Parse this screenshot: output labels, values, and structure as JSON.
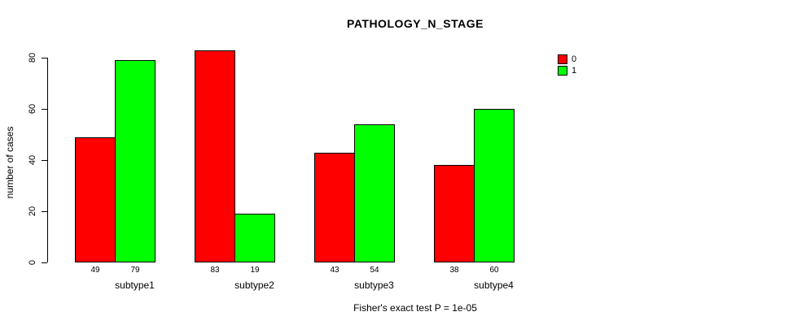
{
  "chart_data": {
    "type": "bar",
    "title": "PATHOLOGY_N_STAGE",
    "ylabel": "number of cases",
    "xlabel": "Fisher's exact test P = 1e-05",
    "categories": [
      "subtype1",
      "subtype2",
      "subtype3",
      "subtype4"
    ],
    "series": [
      {
        "name": "0",
        "color": "#ff0000",
        "values": [
          49,
          83,
          43,
          38
        ]
      },
      {
        "name": "1",
        "color": "#00ff00",
        "values": [
          79,
          19,
          54,
          60
        ]
      }
    ],
    "ylim": [
      0,
      80
    ],
    "yticks": [
      0,
      20,
      40,
      60,
      80
    ],
    "bar_value_labels": [
      [
        "49",
        "79"
      ],
      [
        "83",
        "19"
      ],
      [
        "43",
        "54"
      ],
      [
        "38",
        "60"
      ]
    ],
    "grid": false,
    "legend_position": "right-outside",
    "bar_border_color": "#000000",
    "text_color": "#000000",
    "background_color": "#ffffff"
  }
}
